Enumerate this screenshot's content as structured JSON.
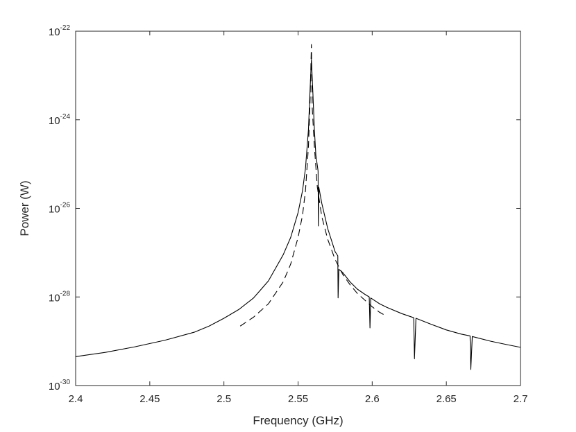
{
  "chart_data": {
    "type": "line",
    "title": "",
    "xlabel": "Frequency (GHz)",
    "ylabel": "Power (W)",
    "xlim": [
      2.4,
      2.7
    ],
    "ylim": [
      1e-30,
      1e-22
    ],
    "yscale": "log",
    "grid": false,
    "legend": "none",
    "x_ticks": [
      {
        "value": 2.4,
        "label": "2.4"
      },
      {
        "value": 2.45,
        "label": "2.45"
      },
      {
        "value": 2.5,
        "label": "2.5"
      },
      {
        "value": 2.55,
        "label": "2.55"
      },
      {
        "value": 2.6,
        "label": "2.6"
      },
      {
        "value": 2.65,
        "label": "2.65"
      },
      {
        "value": 2.7,
        "label": "2.7"
      }
    ],
    "y_ticks": [
      {
        "value": 1e-30,
        "base": "10",
        "exp": "-30"
      },
      {
        "value": 1e-28,
        "base": "10",
        "exp": "-28"
      },
      {
        "value": 1e-26,
        "base": "10",
        "exp": "-26"
      },
      {
        "value": 1e-24,
        "base": "10",
        "exp": "-24"
      },
      {
        "value": 1e-22,
        "base": "10",
        "exp": "-22"
      }
    ],
    "series": [
      {
        "style": "solid",
        "color": "#000000",
        "points": [
          [
            2.4,
            4.5e-30
          ],
          [
            2.42,
            5.6e-30
          ],
          [
            2.44,
            7.5e-30
          ],
          [
            2.46,
            1.05e-29
          ],
          [
            2.48,
            1.6e-29
          ],
          [
            2.49,
            2.2e-29
          ],
          [
            2.5,
            3.3e-29
          ],
          [
            2.51,
            5.2e-29
          ],
          [
            2.52,
            9.5e-29
          ],
          [
            2.53,
            2.3e-28
          ],
          [
            2.54,
            9e-28
          ],
          [
            2.545,
            2.2e-27
          ],
          [
            2.55,
            8e-27
          ],
          [
            2.553,
            2.5e-26
          ],
          [
            2.555,
            8e-26
          ],
          [
            2.557,
            6e-25
          ],
          [
            2.558,
            4e-24
          ],
          [
            2.559,
            2.3e-23
          ],
          [
            2.56,
            4e-24
          ],
          [
            2.561,
            6e-25
          ],
          [
            2.562,
            1.6e-25
          ],
          [
            2.5635,
            7e-26
          ],
          [
            2.5637,
            4e-27
          ],
          [
            2.564,
            3e-26
          ],
          [
            2.566,
            1.3e-26
          ],
          [
            2.57,
            3.5e-27
          ],
          [
            2.575,
            1.05e-27
          ],
          [
            2.5768,
            8.5e-28
          ],
          [
            2.577,
            9.5e-29
          ],
          [
            2.5775,
            4.2e-28
          ],
          [
            2.58,
            3.6e-28
          ],
          [
            2.585,
            2.2e-28
          ],
          [
            2.59,
            1.5e-28
          ],
          [
            2.595,
            1.15e-28
          ],
          [
            2.598,
            1e-28
          ],
          [
            2.5985,
            2e-29
          ],
          [
            2.599,
            9.5e-29
          ],
          [
            2.605,
            7e-29
          ],
          [
            2.61,
            5.8e-29
          ],
          [
            2.62,
            4.2e-29
          ],
          [
            2.628,
            3.4e-29
          ],
          [
            2.6285,
            4e-30
          ],
          [
            2.6295,
            3.3e-29
          ],
          [
            2.64,
            2.4e-29
          ],
          [
            2.65,
            1.8e-29
          ],
          [
            2.66,
            1.45e-29
          ],
          [
            2.666,
            1.32e-29
          ],
          [
            2.6665,
            2.3e-30
          ],
          [
            2.6675,
            1.28e-29
          ],
          [
            2.68,
            1e-29
          ],
          [
            2.69,
            8.5e-30
          ],
          [
            2.7,
            7.3e-30
          ]
        ]
      },
      {
        "style": "dashed",
        "color": "#000000",
        "points": [
          [
            2.511,
            2.2e-29
          ],
          [
            2.52,
            3.5e-29
          ],
          [
            2.53,
            7e-29
          ],
          [
            2.54,
            2.2e-28
          ],
          [
            2.545,
            5.5e-28
          ],
          [
            2.55,
            2.2e-27
          ],
          [
            2.553,
            7e-27
          ],
          [
            2.555,
            2.5e-26
          ],
          [
            2.557,
            2.5e-25
          ],
          [
            2.558,
            2e-24
          ],
          [
            2.559,
            5e-23
          ],
          [
            2.5595,
            2e-24
          ],
          [
            2.561,
            2.5e-25
          ],
          [
            2.563,
            3e-26
          ],
          [
            2.566,
            6.5e-27
          ],
          [
            2.57,
            2e-27
          ],
          [
            2.575,
            7e-28
          ],
          [
            2.58,
            3.3e-28
          ],
          [
            2.585,
            1.9e-28
          ],
          [
            2.59,
            1.2e-28
          ],
          [
            2.595,
            8.5e-29
          ],
          [
            2.6,
            6e-29
          ],
          [
            2.605,
            4.5e-29
          ],
          [
            2.609,
            3.8e-29
          ]
        ]
      }
    ]
  }
}
